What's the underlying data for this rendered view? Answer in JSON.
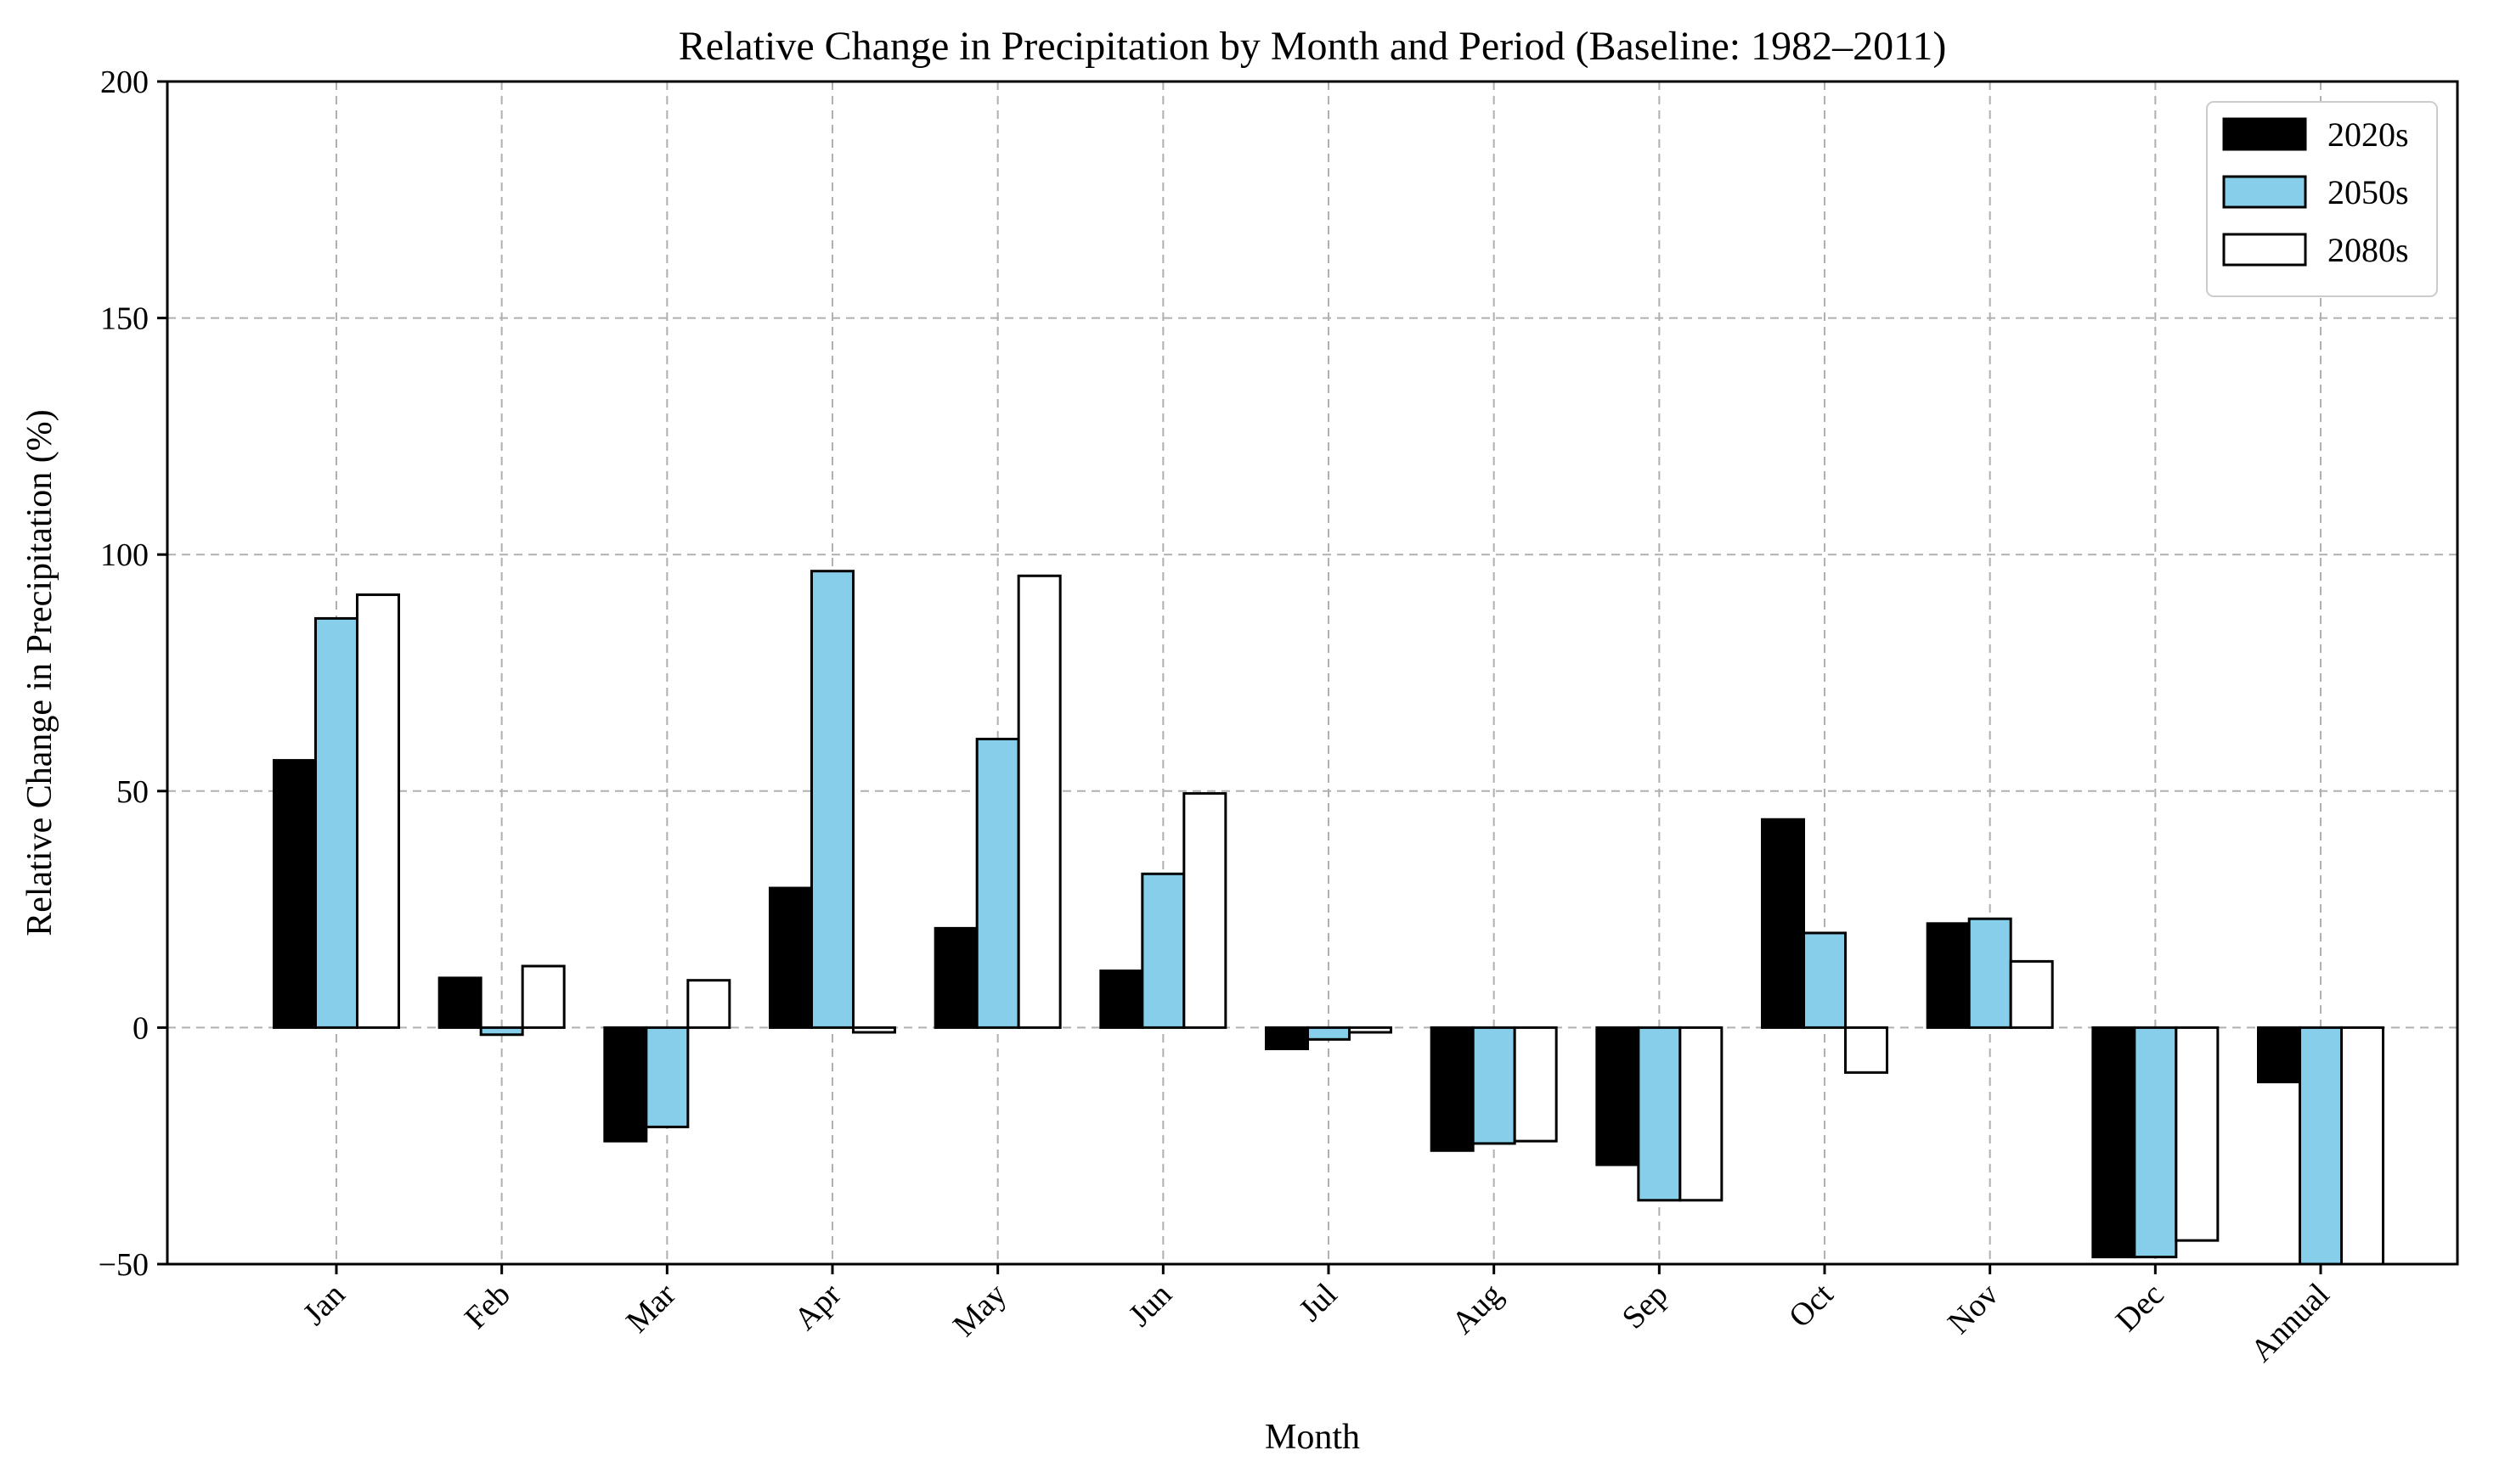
{
  "chart_data": {
    "type": "bar",
    "title": "Relative Change in Precipitation by Month and Period (Baseline: 1982–2011)",
    "xlabel": "Month",
    "ylabel": "Relative Change in Precipitation (%)",
    "ylim": [
      -50,
      200
    ],
    "yticks": [
      -50,
      0,
      50,
      100,
      150,
      200
    ],
    "grid": true,
    "legend_position": "top-right",
    "categories": [
      "Jan",
      "Feb",
      "Mar",
      "Apr",
      "May",
      "Jun",
      "Jul",
      "Aug",
      "Sep",
      "Oct",
      "Nov",
      "Dec",
      "Annual"
    ],
    "series": [
      {
        "name": "2020s",
        "color": "#000000",
        "values": [
          56.5,
          10.5,
          -24,
          29.5,
          21,
          12,
          -4.5,
          -26,
          -29,
          44,
          22,
          -48.5,
          -11.5
        ]
      },
      {
        "name": "2050s",
        "color": "#87ceeb",
        "values": [
          86.5,
          -1.5,
          -21,
          96.5,
          61,
          32.5,
          -2.5,
          -24.5,
          -36.5,
          20,
          23,
          -48.5,
          -50
        ]
      },
      {
        "name": "2080s",
        "color": "#ffffff",
        "values": [
          91.5,
          13,
          10,
          -1,
          95.5,
          49.5,
          -1,
          -24,
          -36.5,
          -9.5,
          14,
          -45,
          -50
        ]
      }
    ]
  }
}
